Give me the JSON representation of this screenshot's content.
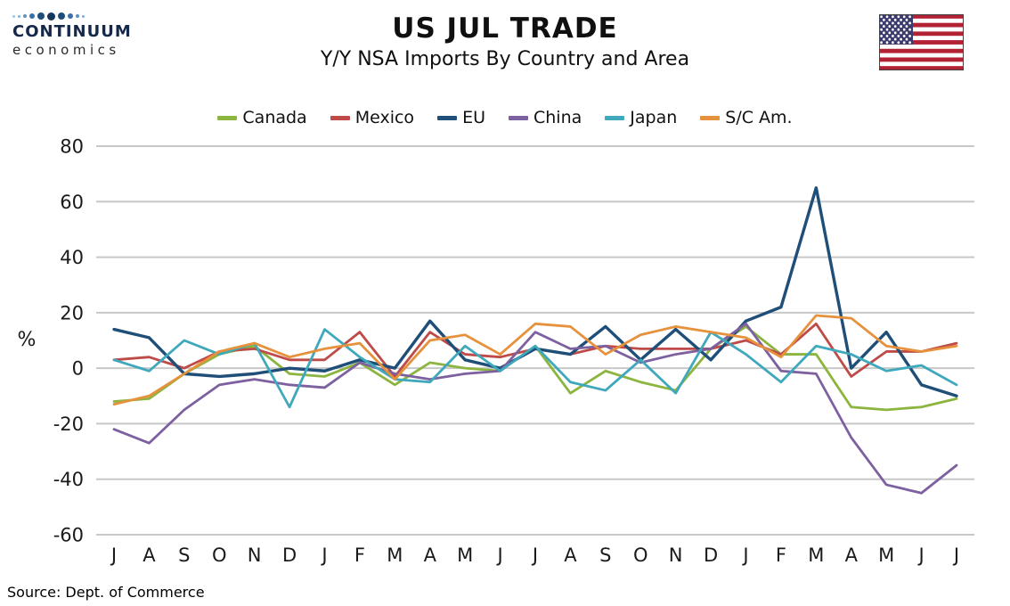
{
  "header": {
    "logo": {
      "line1": "CONTINUUM",
      "line2": "economics"
    },
    "title": "US JUL TRADE",
    "subtitle": "Y/Y NSA Imports By Country and Area"
  },
  "source": "Source: Dept. of Commerce",
  "flag": {
    "name": "us-flag",
    "red": "#B22234",
    "white": "#FFFFFF",
    "blue": "#3C3B6E"
  },
  "chart_data": {
    "type": "line",
    "title": "US JUL TRADE",
    "subtitle": "Y/Y NSA Imports By Country and Area",
    "xlabel": "",
    "ylabel": "%",
    "ylim": [
      -60,
      80
    ],
    "yticks": [
      80,
      60,
      40,
      20,
      0,
      -20,
      -40,
      -60
    ],
    "grid": true,
    "legend_position": "top",
    "gridline_color": "#c8c8c8",
    "categories": [
      "J",
      "A",
      "S",
      "O",
      "N",
      "D",
      "J",
      "F",
      "M",
      "A",
      "M",
      "J",
      "J",
      "A",
      "S",
      "O",
      "N",
      "D",
      "J",
      "F",
      "M",
      "A",
      "M",
      "J",
      "J"
    ],
    "series": [
      {
        "name": "Canada",
        "color": "#8CB53F",
        "values": [
          -12,
          -11,
          -2,
          5,
          8,
          -2,
          -3,
          2,
          -6,
          2,
          0,
          -1,
          8,
          -9,
          -1,
          -5,
          -8,
          7,
          15,
          5,
          5,
          -14,
          -15,
          -14,
          -11
        ]
      },
      {
        "name": "Mexico",
        "color": "#BE4B48",
        "values": [
          3,
          4,
          0,
          6,
          7,
          3,
          3,
          13,
          -3,
          13,
          5,
          4,
          7,
          5,
          8,
          7,
          7,
          7,
          10,
          5,
          16,
          -3,
          6,
          6,
          9
        ]
      },
      {
        "name": "EU",
        "color": "#1F4E79",
        "values": [
          14,
          11,
          -2,
          -3,
          -2,
          0,
          -1,
          3,
          0,
          17,
          3,
          0,
          7,
          5,
          15,
          3,
          14,
          3,
          17,
          22,
          65,
          0,
          13,
          -6,
          -10
        ]
      },
      {
        "name": "China",
        "color": "#7D60A0",
        "values": [
          -22,
          -27,
          -15,
          -6,
          -4,
          -6,
          -7,
          2,
          -2,
          -4,
          -2,
          -1,
          13,
          7,
          8,
          2,
          5,
          7,
          16,
          -1,
          -2,
          -25,
          -42,
          -45,
          -35
        ]
      },
      {
        "name": "Japan",
        "color": "#3FA8BC",
        "values": [
          3,
          -1,
          10,
          5,
          9,
          -14,
          14,
          4,
          -4,
          -5,
          8,
          -1,
          8,
          -5,
          -8,
          3,
          -9,
          13,
          5,
          -5,
          8,
          5,
          -1,
          1,
          -6
        ]
      },
      {
        "name": "S/C Am.",
        "color": "#E6913C",
        "values": [
          -13,
          -10,
          -2,
          6,
          9,
          4,
          7,
          9,
          -4,
          10,
          12,
          5,
          16,
          15,
          5,
          12,
          15,
          13,
          11,
          4,
          19,
          18,
          8,
          6,
          8
        ]
      }
    ]
  }
}
